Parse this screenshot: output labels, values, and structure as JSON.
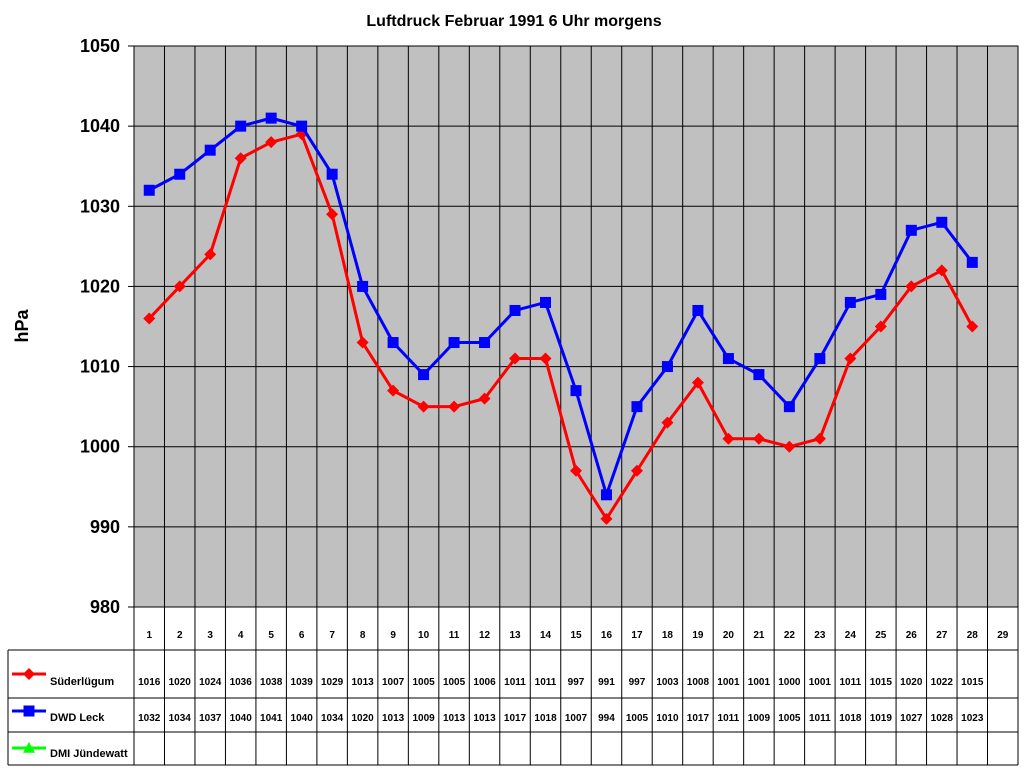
{
  "chart_data": {
    "type": "line",
    "title": "Luftdruck Februar 1991 6 Uhr morgens",
    "ylabel": "hPa",
    "ylim": [
      980,
      1050
    ],
    "yticks": [
      "980",
      "990",
      "1000",
      "1010",
      "1020",
      "1030",
      "1040",
      "1050"
    ],
    "grid": true,
    "plot_background": "#c0c0c0",
    "categories": [
      "1",
      "2",
      "3",
      "4",
      "5",
      "6",
      "7",
      "8",
      "9",
      "10",
      "11",
      "12",
      "13",
      "14",
      "15",
      "16",
      "17",
      "18",
      "19",
      "20",
      "21",
      "22",
      "23",
      "24",
      "25",
      "26",
      "27",
      "28",
      "29"
    ],
    "series": [
      {
        "name": "Süderlügum",
        "color": "#ff0000",
        "marker": "diamond",
        "values": [
          1016,
          1020,
          1024,
          1036,
          1038,
          1039,
          1029,
          1013,
          1007,
          1005,
          1005,
          1006,
          1011,
          1011,
          997,
          991,
          997,
          1003,
          1008,
          1001,
          1001,
          1000,
          1001,
          1011,
          1015,
          1020,
          1022,
          1015,
          null
        ]
      },
      {
        "name": "DWD Leck",
        "color": "#0000ff",
        "marker": "square",
        "values": [
          1032,
          1034,
          1037,
          1040,
          1041,
          1040,
          1034,
          1020,
          1013,
          1009,
          1013,
          1013,
          1017,
          1018,
          1007,
          994,
          1005,
          1010,
          1017,
          1011,
          1009,
          1005,
          1011,
          1018,
          1019,
          1027,
          1028,
          1023,
          null
        ]
      },
      {
        "name": "DMI Jündewatt",
        "color": "#00ff00",
        "marker": "triangle",
        "values": [
          null,
          null,
          null,
          null,
          null,
          null,
          null,
          null,
          null,
          null,
          null,
          null,
          null,
          null,
          null,
          null,
          null,
          null,
          null,
          null,
          null,
          null,
          null,
          null,
          null,
          null,
          null,
          null,
          null
        ]
      }
    ]
  }
}
